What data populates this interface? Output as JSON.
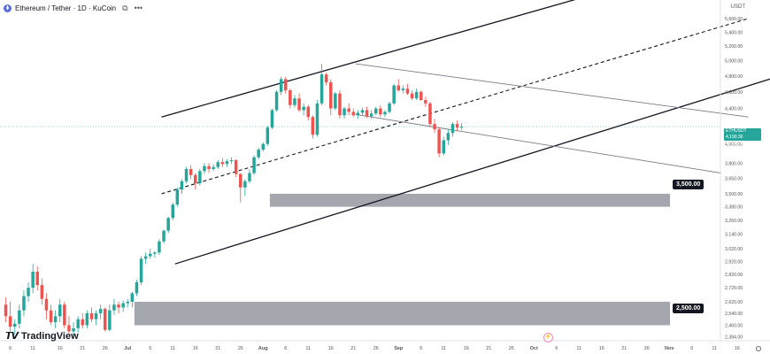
{
  "header": {
    "title": "Ethereum / Tether · 1D · KuCoin",
    "icons": [
      "ethereum-icon",
      "copy-icon",
      "more-icon"
    ],
    "copy_glyph": "⧉",
    "more_glyph": "•••"
  },
  "currency_label": "USDT",
  "watermark": "TradingView",
  "price_tag": {
    "symbol": "ETHUSDT",
    "price": "4,190.36",
    "countdown": "10:14:28"
  },
  "level_labels": [
    "3,500.00",
    "2,500.00"
  ],
  "colors": {
    "up": "#26a69a",
    "down": "#ef5350",
    "zone": "#9598a1",
    "line": "#131722"
  },
  "chart_data": {
    "type": "candlestick",
    "x_ticks": [
      "6",
      "11",
      "16",
      "21",
      "26",
      "Jul",
      "6",
      "11",
      "16",
      "21",
      "26",
      "Aug",
      "6",
      "11",
      "16",
      "21",
      "26",
      "Sep",
      "6",
      "11",
      "16",
      "21",
      "26",
      "Oct",
      "6",
      "11",
      "16",
      "21",
      "26",
      "Nov",
      "6",
      "11",
      "16"
    ],
    "y_ticks": [
      "5,600.00",
      "5,400.00",
      "5,200.00",
      "5,000.00",
      "4,800.00",
      "4,600.00",
      "4,400.00",
      "4,190.36",
      "4,000.00",
      "3,800.00",
      "3,650.00",
      "3,500.00",
      "3,380.00",
      "3,260.00",
      "3,140.00",
      "3,020.00",
      "2,920.00",
      "2,820.00",
      "2,720.00",
      "2,620.00",
      "2,540.00",
      "2,460.00",
      "2,384.00"
    ],
    "scale": "log",
    "ylim": [
      2360,
      5720
    ],
    "grid": false,
    "candles": [
      [
        2600,
        2650,
        2480,
        2520
      ],
      [
        2520,
        2620,
        2420,
        2450
      ],
      [
        2450,
        2500,
        2400,
        2470
      ],
      [
        2470,
        2600,
        2440,
        2560
      ],
      [
        2560,
        2700,
        2520,
        2660
      ],
      [
        2660,
        2760,
        2620,
        2720
      ],
      [
        2720,
        2900,
        2680,
        2840
      ],
      [
        2840,
        2880,
        2700,
        2740
      ],
      [
        2740,
        2790,
        2600,
        2640
      ],
      [
        2640,
        2680,
        2500,
        2560
      ],
      [
        2560,
        2600,
        2460,
        2480
      ],
      [
        2480,
        2560,
        2440,
        2520
      ],
      [
        2520,
        2640,
        2480,
        2600
      ],
      [
        2600,
        2620,
        2440,
        2460
      ],
      [
        2460,
        2520,
        2400,
        2420
      ],
      [
        2420,
        2480,
        2380,
        2440
      ],
      [
        2440,
        2520,
        2410,
        2500
      ],
      [
        2500,
        2540,
        2440,
        2460
      ],
      [
        2460,
        2560,
        2440,
        2540
      ],
      [
        2540,
        2580,
        2480,
        2500
      ],
      [
        2500,
        2560,
        2460,
        2540
      ],
      [
        2540,
        2600,
        2500,
        2570
      ],
      [
        2570,
        2580,
        2420,
        2430
      ],
      [
        2430,
        2600,
        2420,
        2560
      ],
      [
        2560,
        2640,
        2530,
        2600
      ],
      [
        2600,
        2620,
        2540,
        2580
      ],
      [
        2580,
        2630,
        2550,
        2610
      ],
      [
        2610,
        2640,
        2580,
        2620
      ],
      [
        2620,
        2690,
        2580,
        2680
      ],
      [
        2680,
        2780,
        2660,
        2760
      ],
      [
        2760,
        2960,
        2740,
        2940
      ],
      [
        2940,
        2990,
        2900,
        2960
      ],
      [
        2960,
        3020,
        2940,
        2980
      ],
      [
        2980,
        3000,
        2950,
        2990
      ],
      [
        2990,
        3100,
        2970,
        3080
      ],
      [
        3080,
        3180,
        3060,
        3170
      ],
      [
        3170,
        3290,
        3150,
        3280
      ],
      [
        3280,
        3420,
        3260,
        3400
      ],
      [
        3400,
        3560,
        3380,
        3540
      ],
      [
        3540,
        3640,
        3500,
        3620
      ],
      [
        3620,
        3760,
        3600,
        3740
      ],
      [
        3740,
        3780,
        3640,
        3680
      ],
      [
        3680,
        3700,
        3540,
        3600
      ],
      [
        3600,
        3740,
        3580,
        3720
      ],
      [
        3720,
        3800,
        3690,
        3770
      ],
      [
        3770,
        3800,
        3700,
        3740
      ],
      [
        3740,
        3790,
        3720,
        3760
      ],
      [
        3760,
        3830,
        3740,
        3810
      ],
      [
        3810,
        3850,
        3760,
        3790
      ],
      [
        3790,
        3840,
        3760,
        3820
      ],
      [
        3820,
        3860,
        3790,
        3830
      ],
      [
        3830,
        3840,
        3660,
        3690
      ],
      [
        3690,
        3700,
        3420,
        3560
      ],
      [
        3560,
        3640,
        3480,
        3620
      ],
      [
        3620,
        3740,
        3600,
        3700
      ],
      [
        3700,
        3880,
        3680,
        3860
      ],
      [
        3860,
        3960,
        3840,
        3940
      ],
      [
        3940,
        4020,
        3920,
        4000
      ],
      [
        4000,
        4200,
        3980,
        4180
      ],
      [
        4180,
        4400,
        4160,
        4380
      ],
      [
        4380,
        4620,
        4360,
        4600
      ],
      [
        4600,
        4790,
        4560,
        4760
      ],
      [
        4760,
        4790,
        4580,
        4620
      ],
      [
        4620,
        4640,
        4400,
        4440
      ],
      [
        4440,
        4560,
        4410,
        4520
      ],
      [
        4520,
        4580,
        4360,
        4380
      ],
      [
        4380,
        4460,
        4320,
        4420
      ],
      [
        4420,
        4440,
        4260,
        4300
      ],
      [
        4300,
        4320,
        4060,
        4100
      ],
      [
        4100,
        4500,
        4080,
        4460
      ],
      [
        4460,
        4960,
        4440,
        4820
      ],
      [
        4820,
        4840,
        4680,
        4720
      ],
      [
        4720,
        4760,
        4320,
        4400
      ],
      [
        4400,
        4600,
        4380,
        4580
      ],
      [
        4580,
        4620,
        4280,
        4320
      ],
      [
        4320,
        4420,
        4280,
        4400
      ],
      [
        4400,
        4460,
        4320,
        4360
      ],
      [
        4360,
        4400,
        4300,
        4320
      ],
      [
        4320,
        4380,
        4280,
        4350
      ],
      [
        4350,
        4410,
        4320,
        4380
      ],
      [
        4380,
        4420,
        4290,
        4310
      ],
      [
        4310,
        4380,
        4280,
        4340
      ],
      [
        4340,
        4420,
        4320,
        4400
      ],
      [
        4400,
        4440,
        4300,
        4330
      ],
      [
        4330,
        4380,
        4300,
        4360
      ],
      [
        4360,
        4480,
        4340,
        4460
      ],
      [
        4460,
        4700,
        4440,
        4680
      ],
      [
        4680,
        4760,
        4600,
        4620
      ],
      [
        4620,
        4680,
        4580,
        4640
      ],
      [
        4640,
        4700,
        4560,
        4580
      ],
      [
        4580,
        4620,
        4500,
        4520
      ],
      [
        4520,
        4640,
        4500,
        4600
      ],
      [
        4600,
        4620,
        4490,
        4500
      ],
      [
        4500,
        4540,
        4420,
        4460
      ],
      [
        4460,
        4480,
        4180,
        4220
      ],
      [
        4220,
        4280,
        4120,
        4160
      ],
      [
        4160,
        4180,
        3860,
        3900
      ],
      [
        3900,
        4080,
        3880,
        4040
      ],
      [
        4040,
        4160,
        3990,
        4120
      ],
      [
        4120,
        4240,
        4080,
        4220
      ],
      [
        4220,
        4260,
        4140,
        4180
      ],
      [
        4180,
        4230,
        4150,
        4190
      ]
    ],
    "horizontal_zones": [
      [
        3380,
        3500
      ],
      [
        2460,
        2620
      ]
    ],
    "trendlines": [
      {
        "style": "solid",
        "p1": [
          35,
          4300
        ],
        "p2": [
          127,
          5900
        ]
      },
      {
        "style": "dashed",
        "p1": [
          35,
          3500
        ],
        "p2": [
          165,
          5600
        ]
      },
      {
        "style": "solid",
        "p1": [
          38,
          2900
        ],
        "p2": [
          172,
          4800
        ]
      },
      {
        "style": "solid-thin",
        "p1": [
          78,
          4960
        ],
        "p2": [
          165,
          4300
        ]
      },
      {
        "style": "solid-thin",
        "p1": [
          78,
          4330
        ],
        "p2": [
          159,
          3700
        ]
      }
    ]
  }
}
